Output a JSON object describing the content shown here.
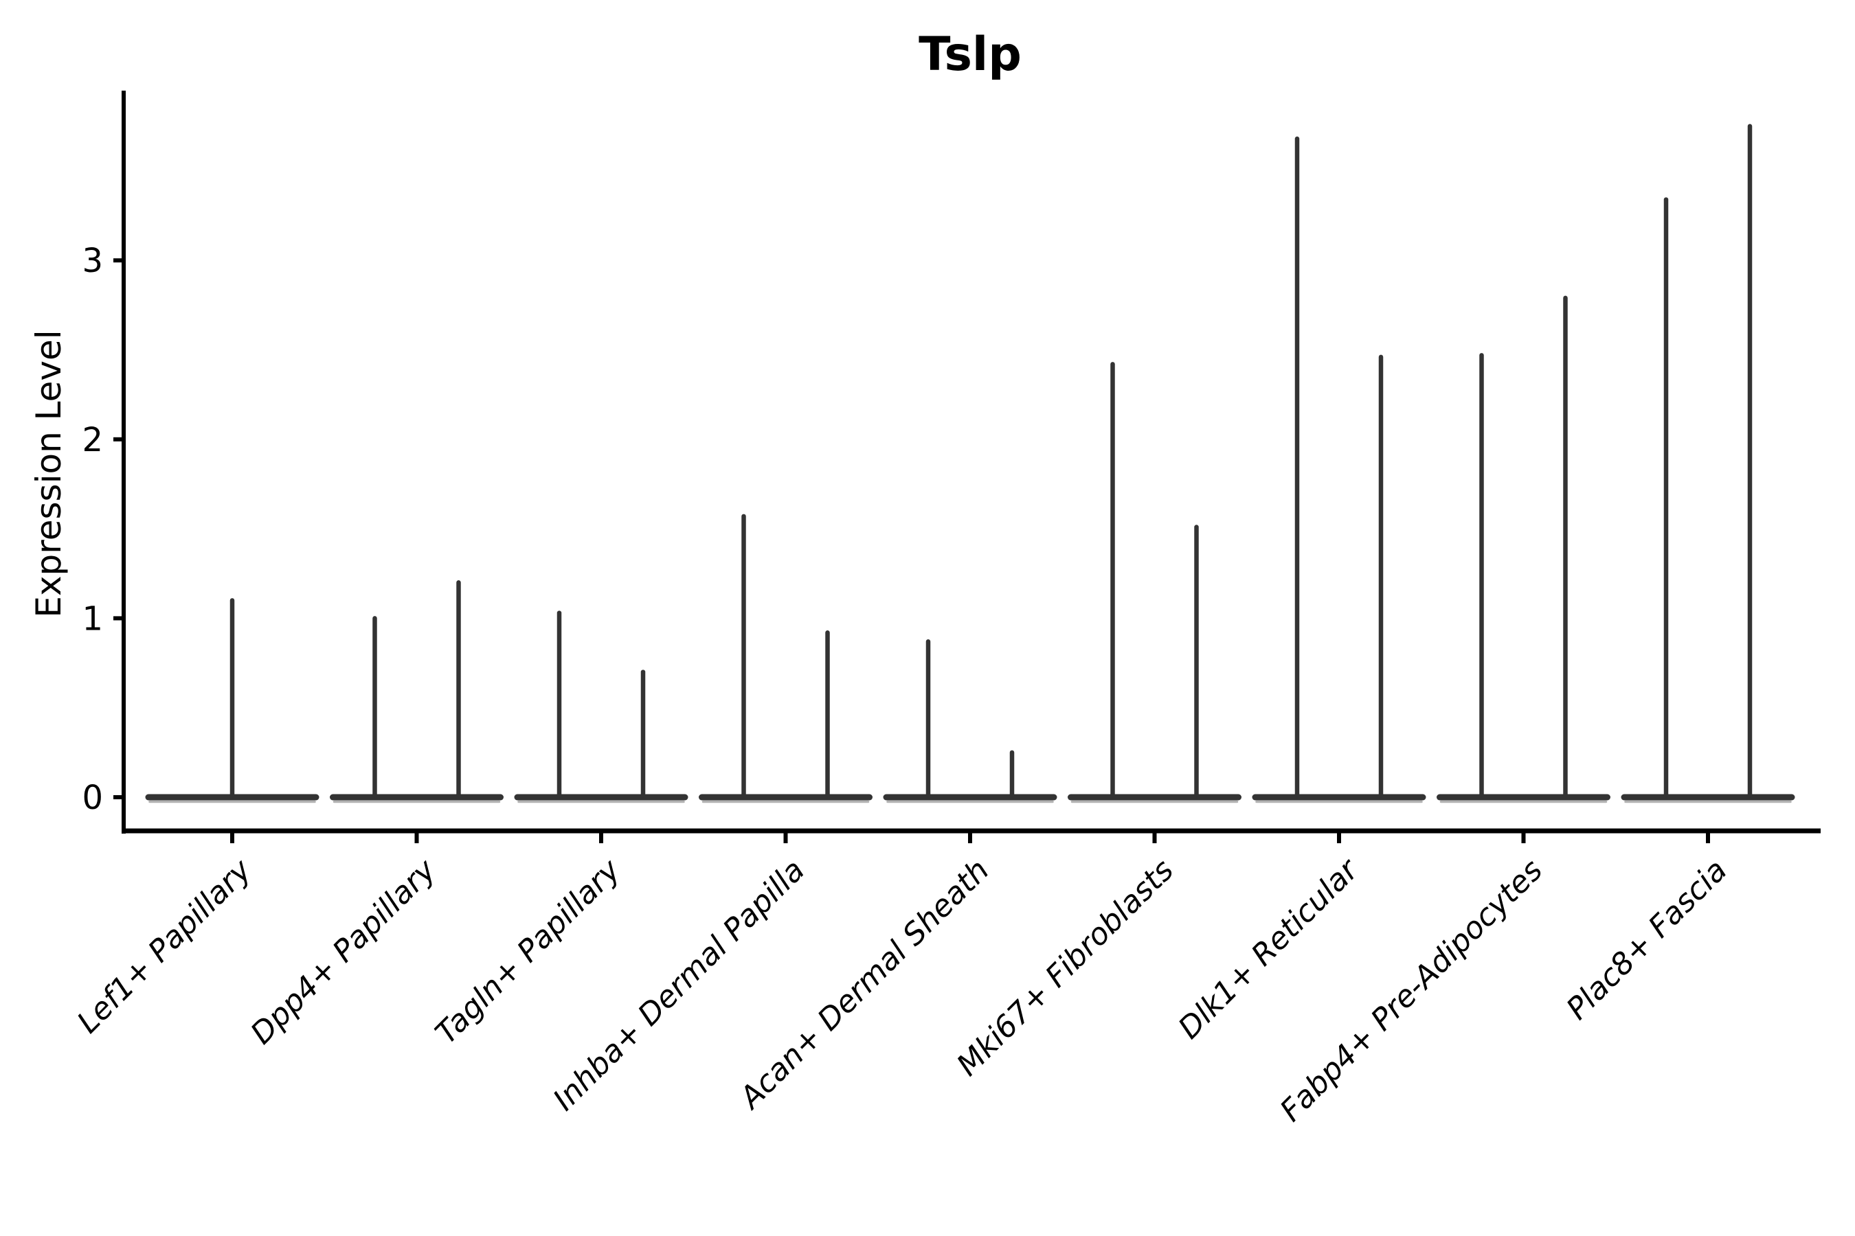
{
  "chart_data": {
    "type": "violin",
    "title": "Tslp",
    "ylabel": "Expression Level",
    "xlabel": "",
    "categories": [
      "Lef1+ Papillary",
      "Dpp4+ Papillary",
      "Tagln+ Papillary",
      "Inhba+ Dermal Papilla",
      "Acan+ Dermal Sheath",
      "Mki67+ Fibroblasts",
      "Dlk1+ Reticular",
      "Fabp4+ Pre-Adipocytes",
      "Plac8+ Fascia"
    ],
    "groups": [
      {
        "label": "Lef1+ Papillary",
        "violin_max": [
          1.1
        ]
      },
      {
        "label": "Dpp4+ Papillary",
        "violin_max": [
          1.0,
          1.2
        ]
      },
      {
        "label": "Tagln+ Papillary",
        "violin_max": [
          1.03,
          0.7
        ]
      },
      {
        "label": "Inhba+ Dermal Papilla",
        "violin_max": [
          1.57,
          0.92
        ]
      },
      {
        "label": "Acan+ Dermal Sheath",
        "violin_max": [
          0.87,
          0.25
        ]
      },
      {
        "label": "Mki67+ Fibroblasts",
        "violin_max": [
          2.42,
          1.51
        ]
      },
      {
        "label": "Dlk1+ Reticular",
        "violin_max": [
          3.68,
          2.46
        ]
      },
      {
        "label": "Fabp4+ Pre-Adipocytes",
        "violin_max": [
          2.47,
          2.79
        ]
      },
      {
        "label": "Plac8+ Fascia",
        "violin_max": [
          3.34,
          3.75
        ]
      }
    ],
    "yticks": [
      0,
      1,
      2,
      3
    ],
    "ylim": [
      -0.19,
      3.94
    ],
    "grid": false,
    "legend": "none",
    "violin_shape": "collapsed-at-zero-with-spike-to-max",
    "style": {
      "line_color": "#333333",
      "violin_fill_fringe": "#b3b3b3",
      "axis_color": "#000000",
      "text_color": "#000000",
      "background": "#ffffff",
      "category_label_style": "italic, rotated 45deg, right-anchored"
    }
  }
}
